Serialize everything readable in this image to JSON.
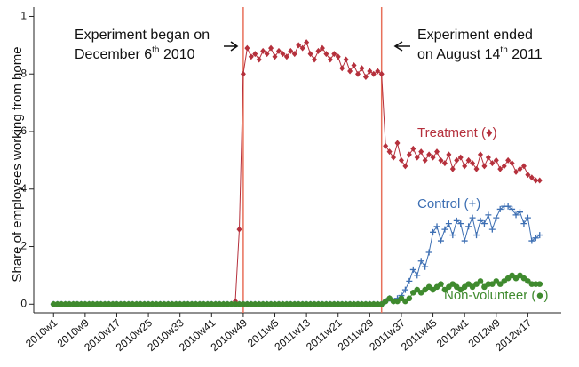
{
  "chart_data": {
    "type": "line",
    "ylabel": "Share of employees working from home",
    "x": [
      0,
      1,
      2,
      3,
      4,
      5,
      6,
      7,
      8,
      9,
      10,
      11,
      12,
      13,
      14,
      15,
      16,
      17,
      18,
      19,
      20,
      21,
      22,
      23,
      24,
      25,
      26,
      27,
      28,
      29,
      30,
      31,
      32,
      33,
      34,
      35,
      36,
      37,
      38,
      39,
      40,
      41,
      42,
      43,
      44,
      45,
      46,
      47,
      48,
      49,
      50,
      51,
      52,
      53,
      54,
      55,
      56,
      57,
      58,
      59,
      60,
      61,
      62,
      63,
      64,
      65,
      66,
      67,
      68,
      69,
      70,
      71,
      72,
      73,
      74,
      75,
      76,
      77,
      78,
      79,
      80,
      81,
      82,
      83,
      84,
      85,
      86,
      87,
      88,
      89,
      90,
      91,
      92,
      93,
      94,
      95,
      96,
      97,
      98,
      99,
      100,
      101,
      102,
      103,
      104,
      105,
      106,
      107,
      108,
      109,
      110,
      111,
      112,
      113,
      114,
      115,
      116,
      117,
      118,
      119,
      120,
      121,
      122,
      123
    ],
    "xlim": [
      -5,
      128
    ],
    "xticks": [
      {
        "value": 0,
        "label": "2010w1"
      },
      {
        "value": 8,
        "label": "2010w9"
      },
      {
        "value": 16,
        "label": "2010w17"
      },
      {
        "value": 24,
        "label": "2010w25"
      },
      {
        "value": 32,
        "label": "2010w33"
      },
      {
        "value": 40,
        "label": "2010w41"
      },
      {
        "value": 48,
        "label": "2010w49"
      },
      {
        "value": 56,
        "label": "2011w5"
      },
      {
        "value": 64,
        "label": "2011w13"
      },
      {
        "value": 72,
        "label": "2011w21"
      },
      {
        "value": 80,
        "label": "2011w29"
      },
      {
        "value": 88,
        "label": "2011w37"
      },
      {
        "value": 96,
        "label": "2011w45"
      },
      {
        "value": 104,
        "label": "2012w1"
      },
      {
        "value": 112,
        "label": "2012w9"
      },
      {
        "value": 120,
        "label": "2012w17"
      }
    ],
    "ylim": [
      -0.03,
      1.02
    ],
    "yticks": [
      0,
      {
        "value": 0.2,
        "label": ".2"
      },
      {
        "value": 0.4,
        "label": ".4"
      },
      {
        "value": 0.6,
        "label": ".6"
      },
      {
        "value": 0.8,
        "label": ".8"
      },
      1
    ],
    "vlines": [
      48,
      83
    ],
    "vline_color": "#e8705a",
    "annotations": [
      {
        "lines": [
          {
            "text": "Experiment began on"
          },
          {
            "text": "December 6",
            "sup": "th",
            "after": " 2010"
          }
        ]
      },
      {
        "lines": [
          {
            "text": "Experiment ended"
          },
          {
            "text": "on August 14",
            "sup": "th",
            "after": " 2011"
          }
        ]
      }
    ],
    "series": [
      {
        "name": "Treatment (♦)",
        "color": "#b5303c",
        "marker": "diamond",
        "values": [
          0,
          0,
          0,
          0,
          0,
          0,
          0,
          0,
          0,
          0,
          0,
          0,
          0,
          0,
          0,
          0,
          0,
          0,
          0,
          0,
          0,
          0,
          0,
          0,
          0,
          0,
          0,
          0,
          0,
          0,
          0,
          0,
          0,
          0,
          0,
          0,
          0,
          0,
          0,
          0,
          0,
          0,
          0,
          0,
          0,
          0,
          0.01,
          0.26,
          0.8,
          0.89,
          0.86,
          0.87,
          0.85,
          0.88,
          0.87,
          0.89,
          0.86,
          0.88,
          0.87,
          0.86,
          0.88,
          0.87,
          0.9,
          0.89,
          0.91,
          0.87,
          0.85,
          0.88,
          0.89,
          0.87,
          0.85,
          0.87,
          0.86,
          0.82,
          0.85,
          0.81,
          0.83,
          0.8,
          0.82,
          0.79,
          0.81,
          0.8,
          0.81,
          0.8,
          0.55,
          0.53,
          0.51,
          0.56,
          0.5,
          0.48,
          0.52,
          0.54,
          0.51,
          0.53,
          0.5,
          0.52,
          0.51,
          0.53,
          0.5,
          0.49,
          0.52,
          0.47,
          0.5,
          0.51,
          0.48,
          0.5,
          0.49,
          0.47,
          0.52,
          0.48,
          0.51,
          0.49,
          0.5,
          0.47,
          0.48,
          0.5,
          0.49,
          0.46,
          0.47,
          0.48,
          0.45,
          0.44,
          0.43,
          0.43
        ]
      },
      {
        "name": "Control (+)",
        "color": "#3d6fb3",
        "marker": "plus",
        "values": [
          0,
          0,
          0,
          0,
          0,
          0,
          0,
          0,
          0,
          0,
          0,
          0,
          0,
          0,
          0,
          0,
          0,
          0,
          0,
          0,
          0,
          0,
          0,
          0,
          0,
          0,
          0,
          0,
          0,
          0,
          0,
          0,
          0,
          0,
          0,
          0,
          0,
          0,
          0,
          0,
          0,
          0,
          0,
          0,
          0,
          0,
          0,
          0,
          0,
          0,
          0,
          0,
          0,
          0,
          0,
          0,
          0,
          0,
          0,
          0,
          0,
          0,
          0,
          0,
          0,
          0,
          0,
          0,
          0,
          0,
          0,
          0,
          0,
          0,
          0,
          0,
          0,
          0,
          0,
          0,
          0,
          0,
          0,
          0,
          0.01,
          0.02,
          0.01,
          0.02,
          0.03,
          0.05,
          0.08,
          0.12,
          0.1,
          0.15,
          0.13,
          0.18,
          0.25,
          0.27,
          0.22,
          0.26,
          0.28,
          0.24,
          0.29,
          0.28,
          0.22,
          0.27,
          0.3,
          0.24,
          0.29,
          0.28,
          0.31,
          0.26,
          0.3,
          0.33,
          0.34,
          0.34,
          0.33,
          0.31,
          0.32,
          0.28,
          0.3,
          0.22,
          0.23,
          0.24
        ]
      },
      {
        "name": "Non-volunteer (●)",
        "color": "#3f8a2e",
        "marker": "circle",
        "values": [
          0,
          0,
          0,
          0,
          0,
          0,
          0,
          0,
          0,
          0,
          0,
          0,
          0,
          0,
          0,
          0,
          0,
          0,
          0,
          0,
          0,
          0,
          0,
          0,
          0,
          0,
          0,
          0,
          0,
          0,
          0,
          0,
          0,
          0,
          0,
          0,
          0,
          0,
          0,
          0,
          0,
          0,
          0,
          0,
          0,
          0,
          0,
          0,
          0,
          0,
          0,
          0,
          0,
          0,
          0,
          0,
          0,
          0,
          0,
          0,
          0,
          0,
          0,
          0,
          0,
          0,
          0,
          0,
          0,
          0,
          0,
          0,
          0,
          0,
          0,
          0,
          0,
          0,
          0,
          0,
          0,
          0,
          0,
          0,
          0.01,
          0.02,
          0.01,
          0.01,
          0.02,
          0.01,
          0.02,
          0.04,
          0.05,
          0.04,
          0.05,
          0.06,
          0.05,
          0.06,
          0.07,
          0.05,
          0.06,
          0.07,
          0.06,
          0.05,
          0.06,
          0.07,
          0.06,
          0.07,
          0.08,
          0.06,
          0.07,
          0.07,
          0.08,
          0.07,
          0.08,
          0.09,
          0.1,
          0.09,
          0.1,
          0.09,
          0.08,
          0.07,
          0.07,
          0.07
        ]
      }
    ]
  }
}
